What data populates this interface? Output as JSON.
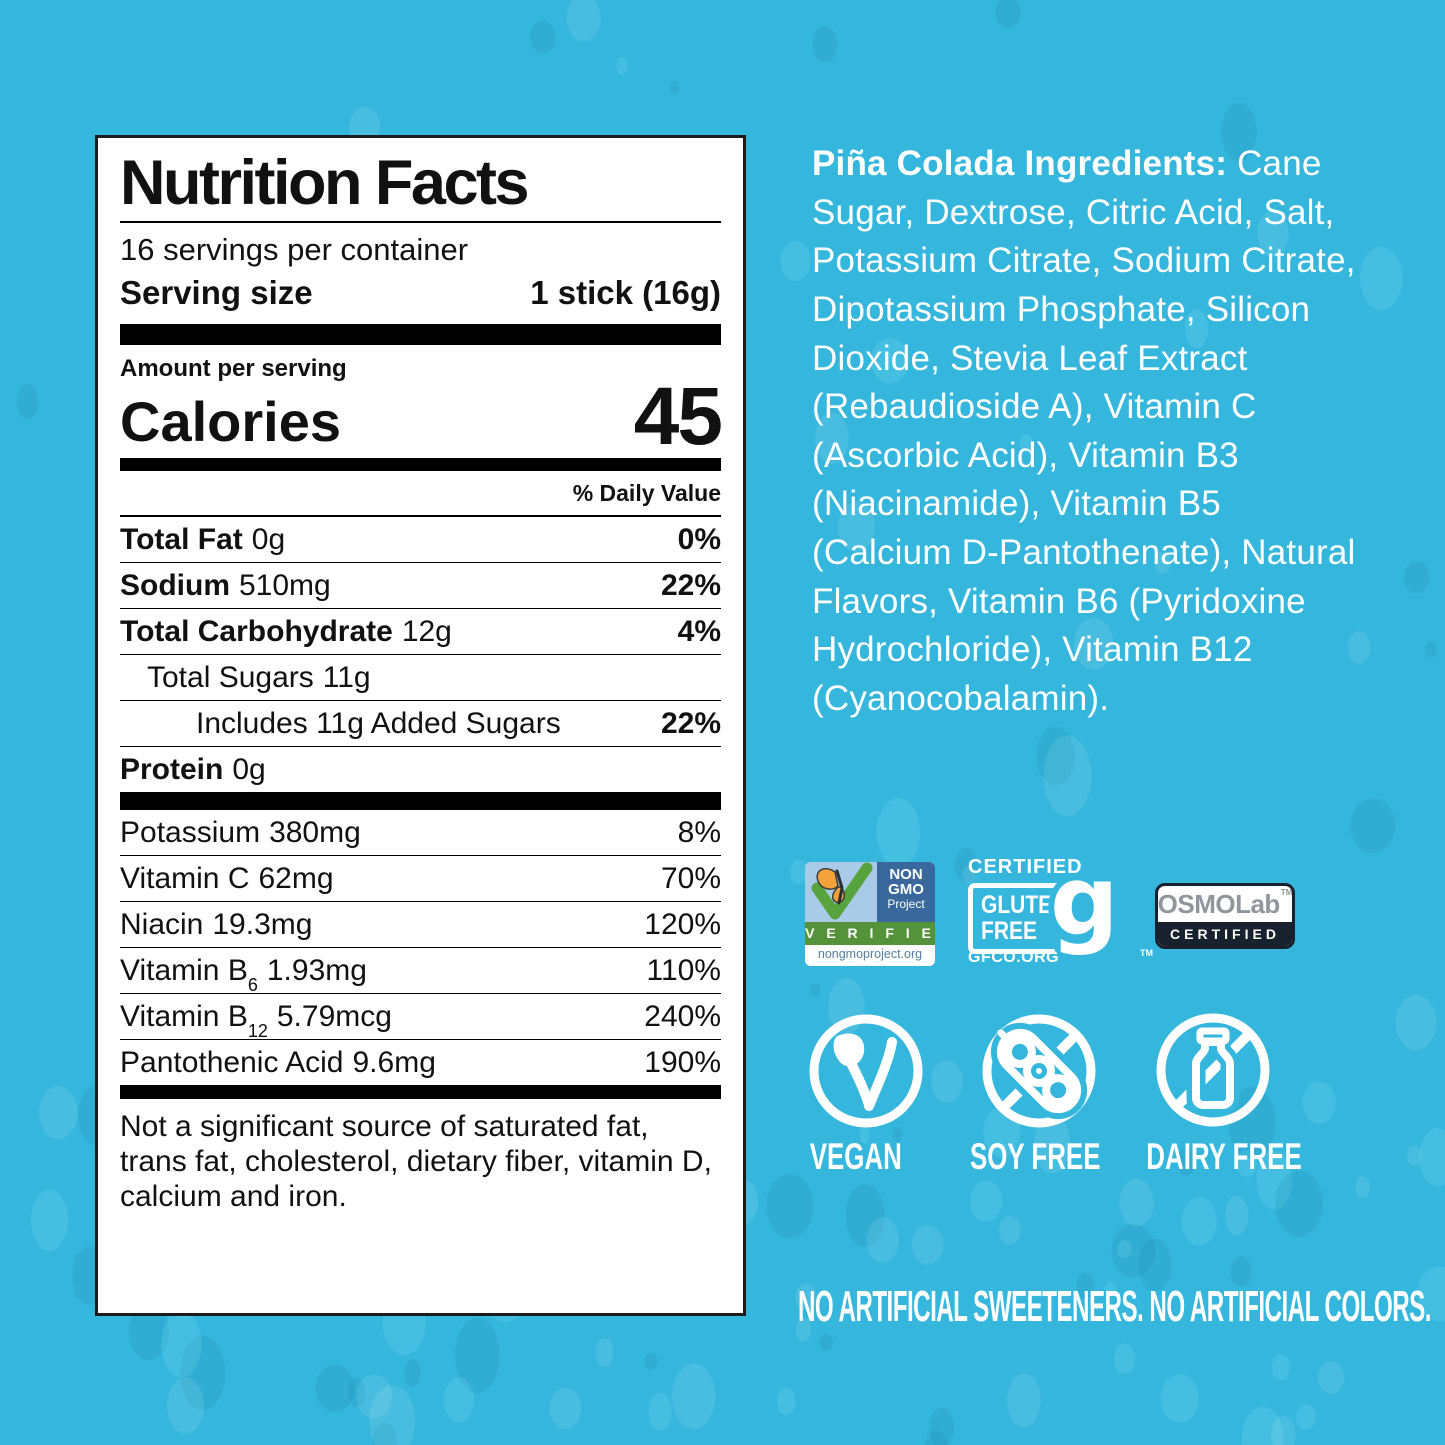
{
  "colors": {
    "background": "#35b6dc",
    "panel_bg": "#ffffff",
    "panel_text": "#111111",
    "white_text": "#ffffff",
    "nongmo_sky": "#a9cbe7",
    "nongmo_blue": "#39699c",
    "nongmo_green": "#55933b",
    "nongmo_url_text": "#56809f",
    "butterfly_orange": "#f5a23c",
    "osmolab_navy": "#18222e",
    "osmolab_gray": "#8f969c"
  },
  "nutrition_panel": {
    "title": "Nutrition Facts",
    "servings_per_container": "16 servings per container",
    "serving_size_label": "Serving size",
    "serving_size_value": "1 stick (16g)",
    "amount_per_serving": "Amount per serving",
    "calories_label": "Calories",
    "calories_value": "45",
    "daily_value_header": "% Daily Value",
    "macro_rows": [
      {
        "name": "Total Fat",
        "amount": "0g",
        "dv": "0%",
        "bold_name": true,
        "indent": 0
      },
      {
        "name": "Sodium",
        "amount": "510mg",
        "dv": "22%",
        "bold_name": true,
        "indent": 0
      },
      {
        "name": "Total Carbohydrate",
        "amount": "12g",
        "dv": "4%",
        "bold_name": true,
        "indent": 0
      },
      {
        "name": "Total Sugars",
        "amount": "11g",
        "dv": "",
        "bold_name": false,
        "indent": 1
      },
      {
        "name": "Includes 11g Added Sugars",
        "amount": "",
        "dv": "22%",
        "bold_name": false,
        "indent": 2
      },
      {
        "name": "Protein",
        "amount": "0g",
        "dv": "",
        "bold_name": true,
        "indent": 0
      }
    ],
    "micro_rows": [
      {
        "name": "Potassium",
        "sub": "",
        "amount": "380mg",
        "dv": "8%"
      },
      {
        "name": "Vitamin C",
        "sub": "",
        "amount": "62mg",
        "dv": "70%"
      },
      {
        "name": "Niacin",
        "sub": "",
        "amount": "19.3mg",
        "dv": "120%"
      },
      {
        "name": "Vitamin B",
        "sub": "6",
        "amount": "1.93mg",
        "dv": "110%"
      },
      {
        "name": "Vitamin B",
        "sub": "12",
        "amount": "5.79mcg",
        "dv": "240%"
      },
      {
        "name": "Pantothenic Acid",
        "sub": "",
        "amount": "9.6mg",
        "dv": "190%"
      }
    ],
    "footnote": "Not a significant source of saturated fat, trans fat, cholesterol, dietary fiber, vitamin D, calcium and iron."
  },
  "ingredients": {
    "title": "Piña Colada Ingredients:",
    "body": " Cane Sugar, Dextrose, Citric Acid, Salt, Potassium Citrate, Sodium Citrate, Dipotassium Phosphate, Silicon Dioxide, Stevia Leaf Extract (Rebaudioside A), Vitamin C (Ascorbic Acid), Vitamin B3 (Niacinamide), Vitamin B5 (Calcium D-Pantothenate), Natural Flavors, Vitamin B6 (Pyridoxine Hydrochloride), Vitamin B12 (Cyanocobalamin)."
  },
  "badges": {
    "non_gmo": {
      "l1": "NON",
      "l2": "GMO",
      "l3": "Project",
      "verified": "V E R I F I E D",
      "url": "nongmoproject.org"
    },
    "gluten_free": {
      "certified": "CERTIFIED",
      "w1": "GLUTEN",
      "w2": "FREE",
      "g_glyph": "g",
      "tm": "TM",
      "url": "GFCO.ORG"
    },
    "osmolab": {
      "brand_left": "OSMO",
      "brand_right": "Lab",
      "tm": "TM",
      "certified": "CERTIFIED"
    }
  },
  "claims": {
    "vegan": "VEGAN",
    "soy_free": "SOY FREE",
    "dairy_free": "DAIRY FREE",
    "bottom_line": "NO ARTIFICIAL SWEETENERS. NO ARTIFICIAL COLORS."
  }
}
